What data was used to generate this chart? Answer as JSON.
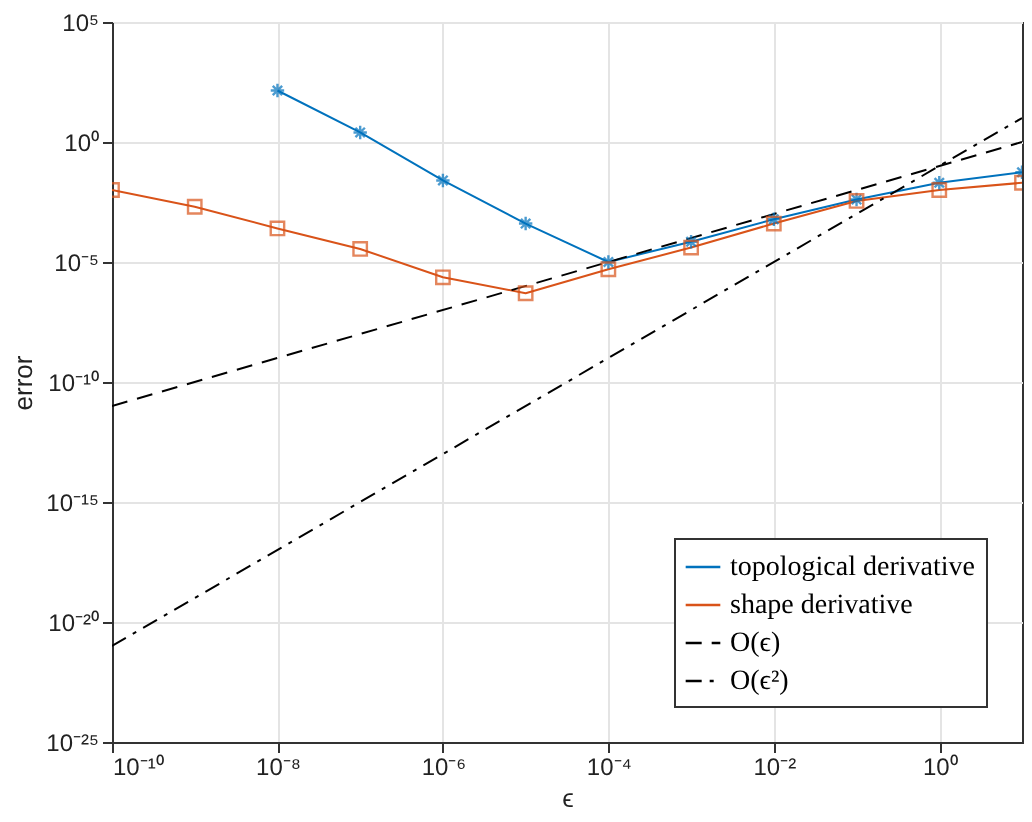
{
  "chart_data": {
    "type": "line",
    "xlabel": "ϵ",
    "ylabel": "error",
    "log": "xy",
    "grid": true,
    "legend": "bottom right",
    "xlim": [
      1e-10,
      10
    ],
    "ylim": [
      1e-25,
      100000
    ],
    "xticks": [
      {
        "value": 1e-10,
        "label": "10⁻¹⁰"
      },
      {
        "value": 1e-08,
        "label": "10⁻⁸"
      },
      {
        "value": 1e-06,
        "label": "10⁻⁶"
      },
      {
        "value": 0.0001,
        "label": "10⁻⁴"
      },
      {
        "value": 0.01,
        "label": "10⁻²"
      },
      {
        "value": 1,
        "label": "10⁰"
      }
    ],
    "yticks": [
      {
        "value": 1e-25,
        "label": "10⁻²⁵"
      },
      {
        "value": 1e-20,
        "label": "10⁻²⁰"
      },
      {
        "value": 1e-15,
        "label": "10⁻¹⁵"
      },
      {
        "value": 1e-10,
        "label": "10⁻¹⁰"
      },
      {
        "value": 1e-05,
        "label": "10⁻⁵"
      },
      {
        "value": 1,
        "label": "10⁰"
      },
      {
        "value": 100000,
        "label": "10⁵"
      }
    ],
    "series": [
      {
        "name": "topological derivative",
        "color": "#0072bd",
        "marker": "cross",
        "line_style": "solid",
        "x": [
          1e-08,
          1e-07,
          1e-06,
          1e-05,
          0.0001,
          0.001,
          0.01,
          0.1,
          1,
          10
        ],
        "values": [
          140,
          2.5,
          0.025,
          0.0004,
          1e-05,
          7e-05,
          0.0006,
          0.004,
          0.02,
          0.055
        ]
      },
      {
        "name": "shape derivative",
        "color": "#d95319",
        "marker": "square",
        "line_style": "solid",
        "x": [
          1e-10,
          1e-09,
          1e-08,
          1e-07,
          1e-06,
          1e-05,
          0.0001,
          0.001,
          0.01,
          0.1,
          1,
          10
        ],
        "values": [
          0.01,
          0.002,
          0.00025,
          3.5e-05,
          2.3e-06,
          5e-07,
          5e-06,
          4e-05,
          0.0004,
          0.0035,
          0.01,
          0.02
        ]
      },
      {
        "name": "O(ϵ)",
        "color": "#000000",
        "marker": "none",
        "line_style": "dashed",
        "x": [
          1e-10,
          10
        ],
        "values": [
          1e-11,
          1
        ]
      },
      {
        "name": "O(ϵ²)",
        "color": "#000000",
        "marker": "none",
        "line_style": "dashdot",
        "x": [
          1e-10,
          10
        ],
        "values": [
          1e-21,
          10
        ]
      }
    ]
  }
}
